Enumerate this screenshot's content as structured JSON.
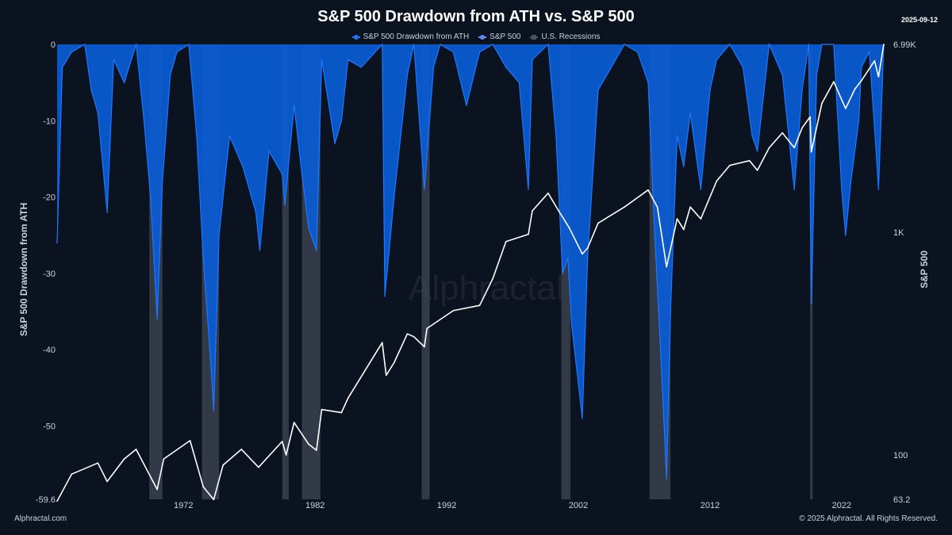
{
  "title": "S&P 500 Drawdown from ATH vs. S&P 500",
  "date": "2025-09-12",
  "footer": {
    "source": "Alphractal.com",
    "copyright": "© 2025 Alphractal. All Rights Reserved."
  },
  "watermark": "Alphractal",
  "colors": {
    "background": "#0b1220",
    "drawdown_fill": "#0a5cd6",
    "drawdown_spike": "#1e78ff",
    "sp500_line": "#ffffff",
    "recession": "#3a4250",
    "axis_text": "#c9d1dc"
  },
  "chart_data": {
    "type": "area",
    "legend": [
      "S&P 500 Drawdown from ATH",
      "S&P 500",
      "U.S. Recessions"
    ],
    "legend_position": "top-center",
    "grid": false,
    "x_ticks": [
      "1972",
      "1982",
      "1992",
      "2002",
      "2012",
      "2022"
    ],
    "x_range": [
      1962.9,
      2025.7
    ],
    "left_axis": {
      "label": "S&P 500 Drawdown from ATH",
      "ticks": [
        "0",
        "-10",
        "-20",
        "-30",
        "-40",
        "-50",
        "-59.6"
      ],
      "range": [
        -59.6,
        0
      ]
    },
    "right_axis": {
      "label": "S&P 500",
      "scale": "log",
      "ticks": [
        "6.99K",
        "1K",
        "100",
        "63.2"
      ],
      "range": [
        63.2,
        6990
      ]
    },
    "recessions": [
      [
        1969.9,
        1970.9
      ],
      [
        1973.9,
        1975.2
      ],
      [
        1980.0,
        1980.5
      ],
      [
        1981.5,
        1982.9
      ],
      [
        1990.6,
        1991.2
      ],
      [
        2001.2,
        2001.9
      ],
      [
        2007.9,
        2009.5
      ],
      [
        2020.1,
        2020.3
      ]
    ],
    "series": [
      {
        "name": "S&P 500 Drawdown from ATH",
        "x": [
          1962.9,
          1963.3,
          1964.0,
          1965.0,
          1965.5,
          1966.0,
          1966.7,
          1967.2,
          1968.0,
          1968.9,
          1969.5,
          1970.0,
          1970.5,
          1970.9,
          1971.5,
          1972.0,
          1972.9,
          1973.5,
          1974.0,
          1974.5,
          1974.8,
          1975.2,
          1976.0,
          1977.0,
          1978.0,
          1978.3,
          1979.0,
          1980.0,
          1980.2,
          1980.9,
          1981.5,
          1982.0,
          1982.6,
          1983.0,
          1984.0,
          1984.5,
          1985.0,
          1986.0,
          1987.6,
          1987.8,
          1988.5,
          1989.5,
          1990.0,
          1990.8,
          1991.5,
          1992.0,
          1993.0,
          1994.0,
          1995.0,
          1996.0,
          1997.0,
          1998.0,
          1998.7,
          1999.0,
          2000.2,
          2000.8,
          2001.3,
          2001.7,
          2002.0,
          2002.8,
          2003.2,
          2004.0,
          2005.0,
          2006.0,
          2007.0,
          2007.8,
          2008.3,
          2008.8,
          2009.2,
          2009.5,
          2010.0,
          2010.5,
          2011.0,
          2011.8,
          2012.5,
          2013.0,
          2014.0,
          2015.0,
          2015.7,
          2016.1,
          2017.0,
          2018.0,
          2018.9,
          2019.5,
          2020.0,
          2020.2,
          2020.6,
          2021.0,
          2021.9,
          2022.5,
          2022.8,
          2023.2,
          2023.8,
          2024.0,
          2024.6,
          2025.0,
          2025.3,
          2025.7
        ],
        "values": [
          -26,
          -3,
          -1,
          0,
          -6,
          -9,
          -22,
          -2,
          -5,
          0,
          -10,
          -20,
          -36,
          -18,
          -4,
          -1,
          0,
          -12,
          -28,
          -40,
          -48,
          -25,
          -12,
          -16,
          -22,
          -27,
          -14,
          -17,
          -21,
          -8,
          -17,
          -24,
          -27,
          -2,
          -13,
          -10,
          -2,
          -3,
          0,
          -33,
          -20,
          -4,
          0,
          -19,
          -3,
          0,
          -1,
          -8,
          -1,
          0,
          -3,
          -5,
          -19,
          -2,
          0,
          -12,
          -30,
          -28,
          -37,
          -49,
          -28,
          -6,
          -3,
          0,
          -1,
          -5,
          -25,
          -42,
          -57,
          -35,
          -12,
          -16,
          -9,
          -19,
          -6,
          -2,
          0,
          -3,
          -12,
          -14,
          0,
          -4,
          -19,
          -6,
          0,
          -34,
          -4,
          0,
          0,
          -19,
          -25,
          -18,
          -10,
          -3,
          -1,
          -11,
          -19,
          0
        ]
      },
      {
        "name": "S&P 500",
        "x": [
          1962.9,
          1964.0,
          1966.0,
          1966.7,
          1968.0,
          1968.9,
          1970.5,
          1971.0,
          1973.0,
          1974.0,
          1974.8,
          1975.5,
          1976.9,
          1978.2,
          1980.0,
          1980.3,
          1980.9,
          1982.0,
          1982.6,
          1983.0,
          1984.5,
          1985.0,
          1987.6,
          1987.9,
          1988.5,
          1989.5,
          1990.0,
          1990.8,
          1991.0,
          1993.0,
          1995.0,
          1996.0,
          1997.0,
          1998.7,
          1999.0,
          2000.2,
          2001.0,
          2001.8,
          2002.8,
          2003.2,
          2004.0,
          2006.0,
          2007.8,
          2008.5,
          2009.2,
          2010.0,
          2010.5,
          2011.0,
          2011.8,
          2013.0,
          2014.0,
          2015.5,
          2016.1,
          2017.0,
          2018.0,
          2018.9,
          2019.5,
          2020.1,
          2020.2,
          2021.0,
          2021.9,
          2022.8,
          2023.5,
          2024.0,
          2025.0,
          2025.3,
          2025.7
        ],
        "values": [
          62,
          82,
          92,
          76,
          96,
          106,
          70,
          96,
          116,
          72,
          63,
          90,
          106,
          88,
          115,
          100,
          140,
          112,
          105,
          160,
          155,
          180,
          320,
          228,
          260,
          350,
          340,
          306,
          370,
          445,
          470,
          620,
          910,
          980,
          1250,
          1500,
          1250,
          1050,
          800,
          850,
          1100,
          1300,
          1550,
          1300,
          700,
          1150,
          1030,
          1300,
          1150,
          1700,
          2000,
          2100,
          1900,
          2400,
          2800,
          2400,
          2950,
          3300,
          2300,
          3800,
          4750,
          3600,
          4400,
          4800,
          5900,
          5000,
          6990
        ]
      }
    ]
  }
}
